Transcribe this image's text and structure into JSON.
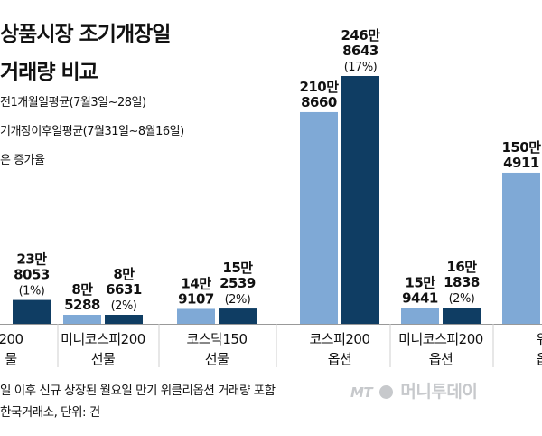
{
  "title": {
    "line1": "상품시장 조기개장일",
    "line2": "거래량 비교"
  },
  "legend": [
    {
      "label": "전1개월일평균(7월3일~28일)"
    },
    {
      "label": "기개장이후일평균(7월31일~8월16일)"
    },
    {
      "label": "은 증가율"
    }
  ],
  "colors": {
    "before": "#7fa9d6",
    "after": "#0f3d63",
    "text": "#111111",
    "baseline": "#999999"
  },
  "chart_data": {
    "type": "bar",
    "categories": [
      {
        "line1": "200",
        "line2": "물"
      },
      {
        "line1": "미니코스피200",
        "line2": "선물"
      },
      {
        "line1": "코스닥150",
        "line2": "선물"
      },
      {
        "line1": "코스피200",
        "line2": "옵션"
      },
      {
        "line1": "미니코스피200",
        "line2": "옵션"
      },
      {
        "line1": "위",
        "line2": "옵"
      }
    ],
    "series": [
      {
        "key": "before",
        "values": [
          null,
          85288,
          149107,
          2108660,
          159441,
          1504911
        ],
        "labels": [
          [
            "",
            ""
          ],
          [
            "8만",
            "5288"
          ],
          [
            "14만",
            "9107"
          ],
          [
            "210만",
            "8660"
          ],
          [
            "15만",
            "9441"
          ],
          [
            "150만",
            "4911"
          ]
        ]
      },
      {
        "key": "after",
        "values": [
          238053,
          86631,
          152539,
          2468643,
          161838,
          null
        ],
        "labels": [
          [
            "23만",
            "8053",
            "(1%)"
          ],
          [
            "8만",
            "6631",
            "(2%)"
          ],
          [
            "15만",
            "2539",
            "(2%)"
          ],
          [
            "246만",
            "8643",
            "(17%)"
          ],
          [
            "16만",
            "1838",
            "(2%)"
          ],
          [
            "",
            "",
            ""
          ]
        ]
      }
    ],
    "ylim": [
      0,
      2468643
    ],
    "grid": false
  },
  "notes": {
    "line1": "일 이후 신규 상장된 월요일 만기 위클리옵션 거래량 포함",
    "line2": "한국거래소, 단위: 건"
  },
  "logo": {
    "mt": "MT",
    "name": "머니투데이"
  }
}
